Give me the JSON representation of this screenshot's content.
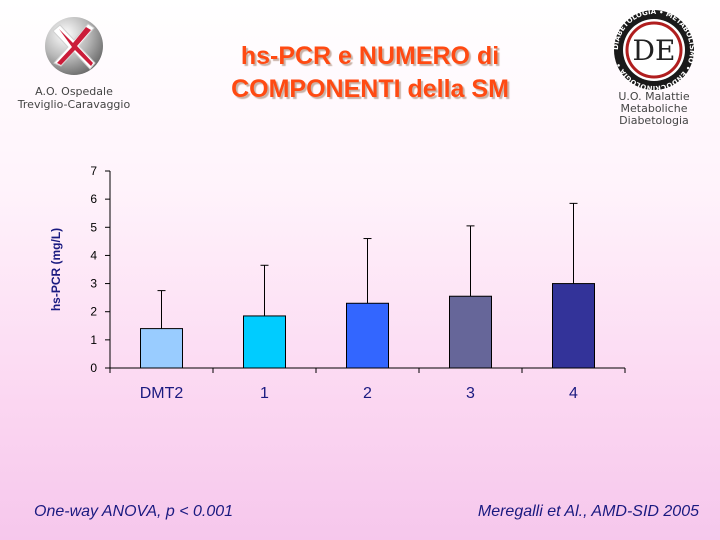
{
  "logo_left": {
    "line1": "A.O. Ospedale",
    "line2": "Treviglio-Caravaggio"
  },
  "logo_right": {
    "ring_text": "DIABETOLOGIA • METABOLISMO • ENDOCRINOLOGIA •",
    "monogram": "DE",
    "line1": "U.O. Malattie",
    "line2": "Metaboliche",
    "line3": "Diabetologia"
  },
  "title": {
    "line1": "hs-PCR e NUMERO di",
    "line2": "COMPONENTI della SM"
  },
  "chart_data": {
    "type": "bar",
    "categories": [
      "DMT2",
      "1",
      "2",
      "3",
      "4"
    ],
    "values": [
      1.4,
      1.85,
      2.3,
      2.55,
      3.0
    ],
    "error_plus": [
      1.35,
      1.8,
      2.3,
      2.5,
      2.85
    ],
    "colors": [
      "#99ccff",
      "#00ccff",
      "#3366ff",
      "#666699",
      "#333399"
    ],
    "ylabel": "hs-PCR (mg/L)",
    "ylim": [
      0,
      7
    ],
    "yticks": [
      "0",
      "1",
      "2",
      "3",
      "4",
      "5",
      "6",
      "7"
    ],
    "grid": false
  },
  "footer": {
    "left": "One-way ANOVA, p < 0.001",
    "right": "Meregalli et Al., AMD-SID 2005"
  }
}
